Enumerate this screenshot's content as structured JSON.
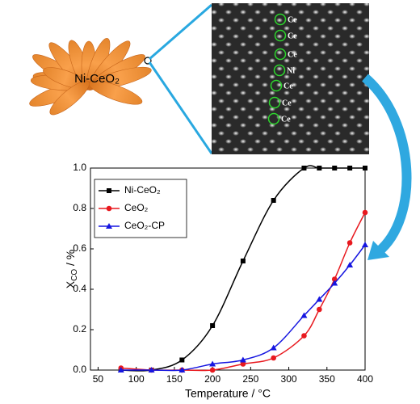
{
  "illustration": {
    "label": "Ni-CeO₂"
  },
  "micrograph": {
    "atoms": [
      "Ce",
      "Ce",
      "Ce",
      "Ni",
      "Ce",
      "Ce",
      "Ce"
    ]
  },
  "chart_data": {
    "type": "line",
    "xlabel": "Temperature / °C",
    "ylabel": [
      "X",
      "CO",
      " / %"
    ],
    "x": [
      80,
      120,
      160,
      200,
      240,
      280,
      320,
      340,
      360,
      380,
      400
    ],
    "series": [
      {
        "name": "Ni-CeO₂",
        "color": "#000000",
        "marker": "square",
        "values": [
          0,
          0,
          0.05,
          0.22,
          0.54,
          0.84,
          1.0,
          1.0,
          1.0,
          1.0,
          1.0
        ]
      },
      {
        "name": "CeO₂",
        "color": "#e8191f",
        "marker": "circle",
        "values": [
          0.01,
          0,
          0,
          0,
          0.03,
          0.06,
          0.17,
          0.3,
          0.45,
          0.63,
          0.78
        ]
      },
      {
        "name": "CeO₂-CP",
        "color": "#1616e0",
        "marker": "triangle",
        "values": [
          0,
          0,
          0,
          0.03,
          0.05,
          0.11,
          0.27,
          0.35,
          0.43,
          0.52,
          0.62
        ]
      }
    ],
    "xlim": [
      40,
      400
    ],
    "xticks": [
      50,
      100,
      150,
      200,
      250,
      300,
      350,
      400
    ],
    "ylim": [
      0,
      1.0
    ],
    "yticks": [
      {
        "value": 0,
        "label": "0.0"
      },
      0.2,
      0.4,
      0.6,
      0.8,
      {
        "value": 1.0,
        "label": "1.0"
      }
    ]
  }
}
